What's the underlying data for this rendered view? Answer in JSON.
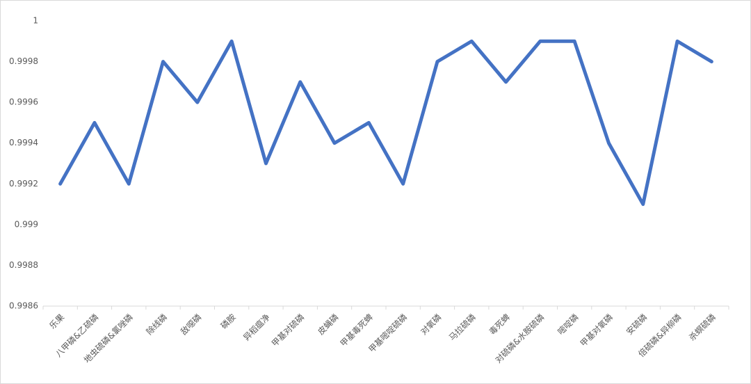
{
  "chart_data": {
    "type": "line",
    "categories": [
      "乐果",
      "八甲磷&乙硫磷",
      "地虫硫磷&氯唑磷",
      "除线磷",
      "敌噁磷",
      "磷胺",
      "异稻瘟净",
      "甲基对硫磷",
      "皮蝇磷",
      "甲基毒死蜱",
      "甲基嘧啶硫磷",
      "对氧磷",
      "马拉硫磷",
      "毒死蜱",
      "对硫磷&水胺硫磷",
      "嘧啶磷",
      "甲基对氧磷",
      "安硫磷",
      "倍硫磷&异柳磷",
      "杀螟硫磷"
    ],
    "values": [
      0.9992,
      0.9995,
      0.9992,
      0.9998,
      0.9996,
      0.9999,
      0.9993,
      0.9997,
      0.9994,
      0.9995,
      0.9992,
      0.9998,
      0.9999,
      0.9997,
      0.9999,
      0.9999,
      0.9994,
      0.9991,
      0.9999,
      0.9998
    ],
    "color": "#4472c4",
    "ylim": [
      0.9986,
      1
    ],
    "yticks": [
      0.9986,
      0.9988,
      0.999,
      0.9992,
      0.9994,
      0.9996,
      0.9998,
      1
    ],
    "grid": false
  }
}
